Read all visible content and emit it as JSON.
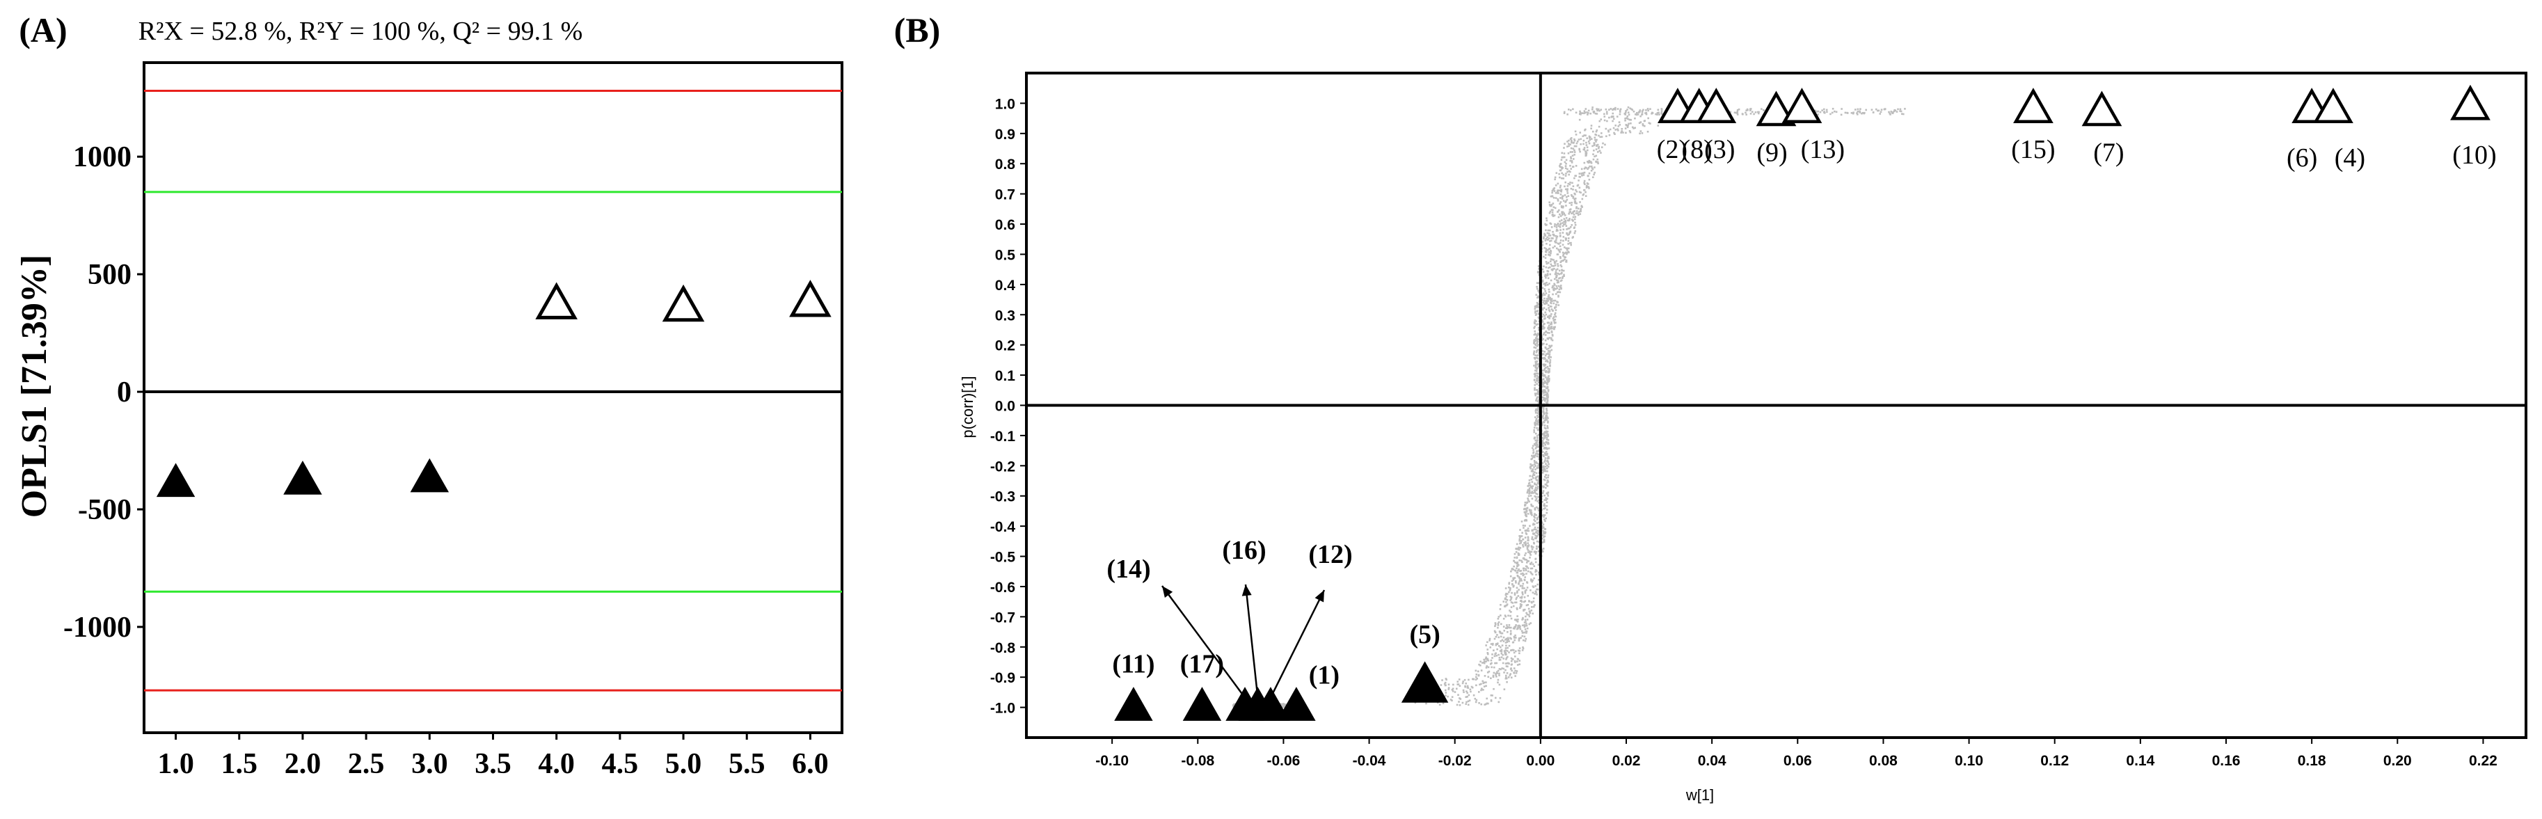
{
  "chart_data": [
    {
      "type": "scatter",
      "panel_label": "(A)",
      "title": "R²X = 52.8 %, R²Y = 100 %, Q² = 99.1 %",
      "xlabel": "",
      "ylabel": "OPLS1 [71.39%]",
      "xlim": [
        0.75,
        6.25
      ],
      "ylim": [
        -1450,
        1400
      ],
      "xticks": [
        "1.0",
        "1.5",
        "2.0",
        "2.5",
        "3.0",
        "3.5",
        "4.0",
        "4.5",
        "5.0",
        "5.5",
        "6.0"
      ],
      "xtick_values": [
        1.0,
        1.5,
        2.0,
        2.5,
        3.0,
        3.5,
        4.0,
        4.5,
        5.0,
        5.5,
        6.0
      ],
      "yticks": [
        "1000",
        "500",
        "0",
        "-500",
        "-1000"
      ],
      "ytick_values": [
        1000,
        500,
        0,
        -500,
        -1000
      ],
      "grid": false,
      "reference_lines": [
        {
          "y": 1280,
          "color": "#e8201c"
        },
        {
          "y": 850,
          "color": "#2ee82e"
        },
        {
          "y": 0,
          "color": "#000000"
        },
        {
          "y": -850,
          "color": "#2ee82e"
        },
        {
          "y": -1270,
          "color": "#e8201c"
        }
      ],
      "series": [
        {
          "marker": "filled-triangle",
          "color": "#000000",
          "x": [
            1.0,
            2.0,
            3.0
          ],
          "y": [
            -390,
            -380,
            -370
          ]
        },
        {
          "marker": "open-triangle",
          "color": "#000000",
          "x": [
            4.0,
            5.0,
            6.0
          ],
          "y": [
            370,
            360,
            380
          ]
        }
      ]
    },
    {
      "type": "scatter",
      "panel_label": "(B)",
      "xlabel": "w[1]",
      "ylabel": "p(corr)[1]",
      "xlim": [
        -0.12,
        0.23
      ],
      "ylim": [
        -1.1,
        1.1
      ],
      "xticks": [
        "-0.10",
        "-0.08",
        "-0.06",
        "-0.04",
        "-0.02",
        "0.00",
        "0.02",
        "0.04",
        "0.06",
        "0.08",
        "0.10",
        "0.12",
        "0.14",
        "0.16",
        "0.18",
        "0.20",
        "0.22"
      ],
      "xtick_values": [
        -0.1,
        -0.08,
        -0.06,
        -0.04,
        -0.02,
        0.0,
        0.02,
        0.04,
        0.06,
        0.08,
        0.1,
        0.12,
        0.14,
        0.16,
        0.18,
        0.2,
        0.22
      ],
      "yticks": [
        "1.0",
        "0.9",
        "0.8",
        "0.7",
        "0.6",
        "0.5",
        "0.4",
        "0.3",
        "0.2",
        "0.1",
        "0.0",
        "-0.1",
        "-0.2",
        "-0.3",
        "-0.4",
        "-0.5",
        "-0.6",
        "-0.7",
        "-0.8",
        "-0.9",
        "-1.0"
      ],
      "ytick_values": [
        1.0,
        0.9,
        0.8,
        0.7,
        0.6,
        0.5,
        0.4,
        0.3,
        0.2,
        0.1,
        0.0,
        -0.1,
        -0.2,
        -0.3,
        -0.4,
        -0.5,
        -0.6,
        -0.7,
        -0.8,
        -0.9,
        -1.0
      ],
      "grid": false,
      "background_cloud_color": "#bdbdbd",
      "highlighted_up": [
        {
          "label": "(2)",
          "x": 0.032,
          "y": 0.98
        },
        {
          "label": "(8)",
          "x": 0.037,
          "y": 0.98
        },
        {
          "label": "(3)",
          "x": 0.041,
          "y": 0.98
        },
        {
          "label": "(9)",
          "x": 0.055,
          "y": 0.97
        },
        {
          "label": "(13)",
          "x": 0.061,
          "y": 0.98
        },
        {
          "label": "(15)",
          "x": 0.115,
          "y": 0.98
        },
        {
          "label": "(7)",
          "x": 0.131,
          "y": 0.97
        },
        {
          "label": "(6)",
          "x": 0.18,
          "y": 0.98
        },
        {
          "label": "(4)",
          "x": 0.185,
          "y": 0.98
        },
        {
          "label": "(10)",
          "x": 0.217,
          "y": 0.99
        }
      ],
      "highlighted_down": [
        {
          "label": "(11)",
          "x": -0.095,
          "y": -1.0
        },
        {
          "label": "(17)",
          "x": -0.079,
          "y": -1.0
        },
        {
          "label": "(14)",
          "x": -0.069,
          "y": -1.0
        },
        {
          "label": "(16)",
          "x": -0.066,
          "y": -1.0
        },
        {
          "label": "(12)",
          "x": -0.063,
          "y": -1.0
        },
        {
          "label": "(1)",
          "x": -0.057,
          "y": -1.0
        },
        {
          "label": "(5)",
          "x": -0.027,
          "y": -0.93
        }
      ]
    }
  ]
}
